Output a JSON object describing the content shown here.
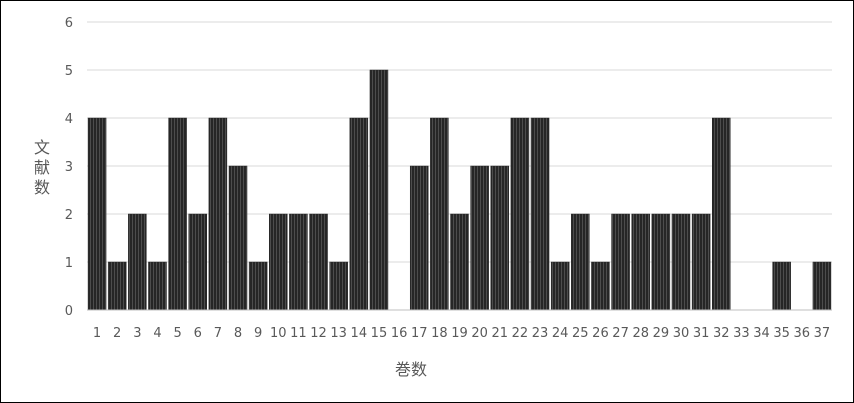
{
  "chart_data": {
    "type": "bar",
    "title": "",
    "xlabel": "巻数",
    "ylabel": "文献数",
    "categories": [
      "1",
      "2",
      "3",
      "4",
      "5",
      "6",
      "7",
      "8",
      "9",
      "10",
      "11",
      "12",
      "13",
      "14",
      "15",
      "16",
      "17",
      "18",
      "19",
      "20",
      "21",
      "22",
      "23",
      "24",
      "25",
      "26",
      "27",
      "28",
      "29",
      "30",
      "31",
      "32",
      "33",
      "34",
      "35",
      "36",
      "37"
    ],
    "values": [
      4,
      1,
      2,
      1,
      4,
      2,
      4,
      3,
      1,
      2,
      2,
      2,
      1,
      4,
      5,
      0,
      3,
      4,
      2,
      3,
      3,
      4,
      4,
      1,
      2,
      1,
      2,
      2,
      2,
      2,
      2,
      4,
      0,
      0,
      1,
      0,
      1
    ],
    "ylim": [
      0,
      6
    ],
    "yticks": [
      0,
      1,
      2,
      3,
      4,
      5,
      6
    ],
    "grid": true,
    "legend": "none",
    "colors": {
      "bar": "#262626",
      "bar_stripe": "#4d4d4d",
      "grid": "#d9d9d9",
      "axis": "#bfbfbf",
      "text": "#595959",
      "frame": "#000000"
    }
  }
}
